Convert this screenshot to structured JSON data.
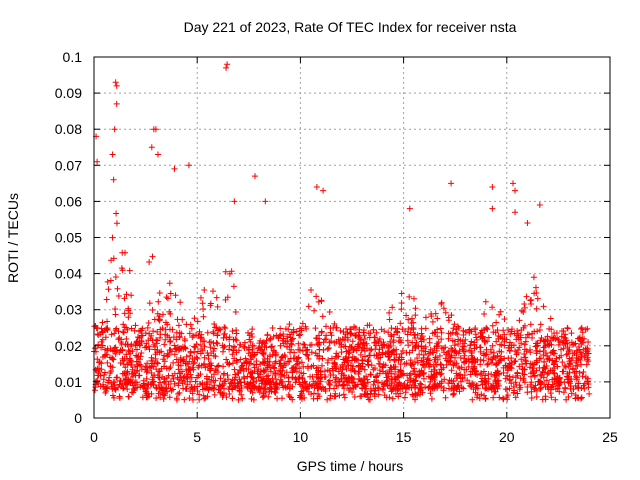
{
  "chart_data": {
    "type": "scatter",
    "title": "Day 221 of 2023, Rate Of TEC Index for receiver nsta",
    "xlabel": "GPS time / hours",
    "ylabel": "ROTI / TECUs",
    "xlim": [
      0,
      25
    ],
    "ylim": [
      0,
      0.1
    ],
    "x_ticks": [
      "0",
      "5",
      "10",
      "15",
      "20",
      "25"
    ],
    "y_ticks": [
      "0",
      "0.01",
      "0.02",
      "0.03",
      "0.04",
      "0.05",
      "0.06",
      "0.07",
      "0.08",
      "0.09",
      "0.1"
    ],
    "x_tick_values": [
      0,
      5,
      10,
      15,
      20,
      25
    ],
    "y_tick_values": [
      0,
      0.01,
      0.02,
      0.03,
      0.04,
      0.05,
      0.06,
      0.07,
      0.08,
      0.09,
      0.1
    ],
    "grid": true,
    "marker": "+",
    "series_color": "#ff0000",
    "data_range_hours": [
      0,
      24
    ],
    "baseline_band_roti": [
      0.005,
      0.025
    ],
    "notable_points": [
      {
        "x": 0.1,
        "y": 0.078
      },
      {
        "x": 0.15,
        "y": 0.071
      },
      {
        "x": 1.05,
        "y": 0.093
      },
      {
        "x": 1.1,
        "y": 0.092
      },
      {
        "x": 1.1,
        "y": 0.087
      },
      {
        "x": 1.0,
        "y": 0.08
      },
      {
        "x": 0.9,
        "y": 0.073
      },
      {
        "x": 0.95,
        "y": 0.066
      },
      {
        "x": 2.9,
        "y": 0.08
      },
      {
        "x": 3.0,
        "y": 0.08
      },
      {
        "x": 2.8,
        "y": 0.075
      },
      {
        "x": 3.1,
        "y": 0.073
      },
      {
        "x": 3.9,
        "y": 0.069
      },
      {
        "x": 4.6,
        "y": 0.07
      },
      {
        "x": 6.4,
        "y": 0.097
      },
      {
        "x": 6.45,
        "y": 0.098
      },
      {
        "x": 6.8,
        "y": 0.06
      },
      {
        "x": 7.8,
        "y": 0.067
      },
      {
        "x": 8.3,
        "y": 0.06
      },
      {
        "x": 10.8,
        "y": 0.064
      },
      {
        "x": 11.1,
        "y": 0.063
      },
      {
        "x": 15.3,
        "y": 0.058
      },
      {
        "x": 17.3,
        "y": 0.065
      },
      {
        "x": 19.3,
        "y": 0.064
      },
      {
        "x": 19.3,
        "y": 0.058
      },
      {
        "x": 20.3,
        "y": 0.065
      },
      {
        "x": 20.4,
        "y": 0.063
      },
      {
        "x": 20.4,
        "y": 0.057
      },
      {
        "x": 21.6,
        "y": 0.059
      },
      {
        "x": 21.0,
        "y": 0.054
      }
    ]
  }
}
